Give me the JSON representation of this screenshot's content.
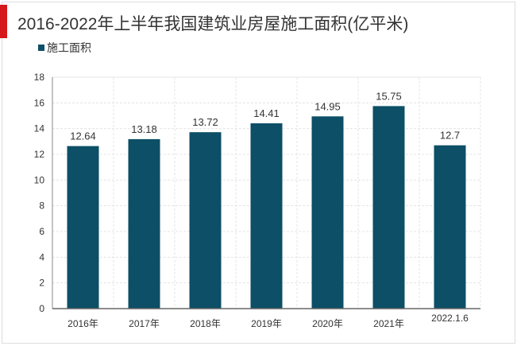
{
  "chart_data": {
    "type": "bar",
    "title": "2016-2022年上半年我国建筑业房屋施工面积(亿平米)",
    "legend": [
      "施工面积"
    ],
    "legend_position": "top-left",
    "categories": [
      "2016年",
      "2017年",
      "2018年",
      "2019年",
      "2020年",
      "2021年",
      "2022.1.6"
    ],
    "series": [
      {
        "name": "施工面积",
        "values": [
          12.64,
          13.18,
          13.72,
          14.41,
          14.95,
          15.75,
          12.7
        ]
      }
    ],
    "data_labels": [
      "12.64",
      "13.18",
      "13.72",
      "14.41",
      "14.95",
      "15.75",
      "12.7"
    ],
    "ylim": [
      0,
      18
    ],
    "yticks": [
      0,
      2,
      4,
      6,
      8,
      10,
      12,
      14,
      16,
      18
    ],
    "grid": true,
    "xlabel": "",
    "ylabel": "",
    "bar_color": "#0c4f66",
    "accent_color": "#d4181b"
  }
}
